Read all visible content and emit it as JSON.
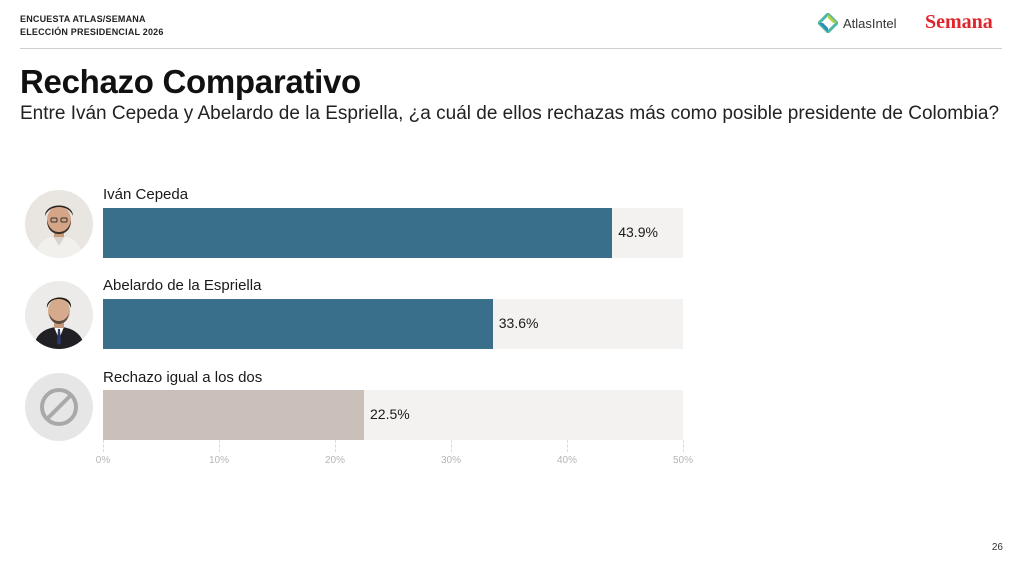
{
  "header": {
    "line1": "ENCUESTA ATLAS/SEMANA",
    "line2": "ELECCIÓN PRESIDENCIAL 2026",
    "brand1": "AtlasIntel",
    "brand2": "Semana"
  },
  "colors": {
    "primary": "#3a6f8c",
    "secondary": "#cbbfb9",
    "track": "#f3f2f0",
    "semana_red": "#e0242c"
  },
  "chart_data": {
    "type": "bar",
    "orientation": "horizontal",
    "title": "Rechazo Comparativo",
    "subtitle": "Entre Iván Cepeda y Abelardo de la Espriella, ¿a cuál de ellos rechazas más como posible presidente de Colombia?",
    "categories": [
      "Iván Cepeda",
      "Abelardo de la Espriella",
      "Rechazo igual a los dos"
    ],
    "values": [
      43.9,
      33.6,
      22.5
    ],
    "value_labels": [
      "43.9%",
      "33.6%",
      "22.5%"
    ],
    "xlim": [
      0,
      50
    ],
    "ticks": [
      "0%",
      "10%",
      "20%",
      "30%",
      "40%",
      "50%"
    ],
    "icons": [
      "person-photo",
      "person-photo",
      "prohibited-icon"
    ]
  },
  "page_number": "26"
}
